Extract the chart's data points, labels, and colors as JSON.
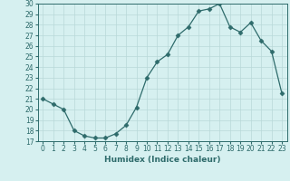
{
  "x": [
    0,
    1,
    2,
    3,
    4,
    5,
    6,
    7,
    8,
    9,
    10,
    11,
    12,
    13,
    14,
    15,
    16,
    17,
    18,
    19,
    20,
    21,
    22,
    23
  ],
  "y": [
    21,
    20.5,
    20,
    18,
    17.5,
    17.3,
    17.3,
    17.7,
    18.5,
    20.2,
    23,
    24.5,
    25.2,
    27,
    27.8,
    29.3,
    29.5,
    30,
    27.8,
    27.3,
    28.2,
    26.5,
    25.5,
    21.5
  ],
  "line_color": "#2e6b6b",
  "marker": "D",
  "marker_size": 2.5,
  "bg_color": "#d6f0f0",
  "grid_color": "#b8d8d8",
  "xlabel": "Humidex (Indice chaleur)",
  "ylim": [
    17,
    30
  ],
  "xlim_min": -0.5,
  "xlim_max": 23.5,
  "yticks": [
    17,
    18,
    19,
    20,
    21,
    22,
    23,
    24,
    25,
    26,
    27,
    28,
    29,
    30
  ],
  "xticks": [
    0,
    1,
    2,
    3,
    4,
    5,
    6,
    7,
    8,
    9,
    10,
    11,
    12,
    13,
    14,
    15,
    16,
    17,
    18,
    19,
    20,
    21,
    22,
    23
  ],
  "xlabel_fontsize": 6.5,
  "tick_fontsize": 5.5
}
